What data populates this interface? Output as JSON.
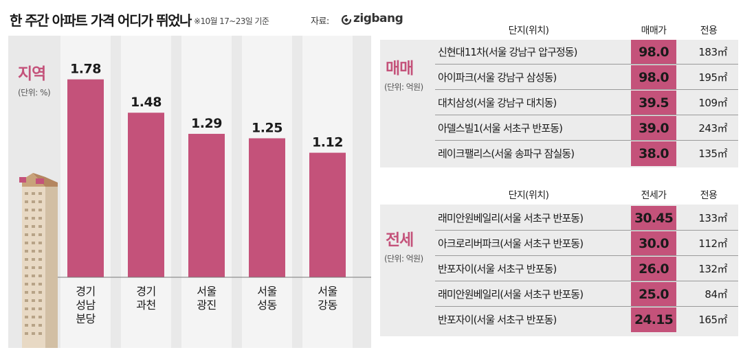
{
  "header": {
    "title": "한 주간 아파트 가격 어디가 뛰었나",
    "subtitle": "※10월 17~23일 기준",
    "source_label": "자료:",
    "brand": "zigbang",
    "brand_icon": "zigbang-logo-icon"
  },
  "chart_data": {
    "type": "bar",
    "title": "지역",
    "unit": "(단위: %)",
    "categories": [
      [
        "경기",
        "성남",
        "분당"
      ],
      [
        "경기",
        "과천"
      ],
      [
        "서울",
        "광진"
      ],
      [
        "서울",
        "성동"
      ],
      [
        "서울",
        "강동"
      ]
    ],
    "values": [
      1.78,
      1.48,
      1.29,
      1.25,
      1.12
    ],
    "data_labels": [
      "1.78",
      "1.48",
      "1.29",
      "1.25",
      "1.12"
    ],
    "ylim": [
      0,
      2.0
    ],
    "grid": false,
    "bar_color": "#c4527a"
  },
  "sale_table": {
    "label": "매매",
    "unit": "(단위: 억원)",
    "headers": {
      "name": "단지(위치)",
      "price": "매매가",
      "area": "전용"
    },
    "rows": [
      {
        "name": "신현대11차(서울 강남구 압구정동)",
        "price": "98.0",
        "area": "183㎡"
      },
      {
        "name": "아이파크(서울 강남구 삼성동)",
        "price": "98.0",
        "area": "195㎡"
      },
      {
        "name": "대치삼성(서울 강남구 대치동)",
        "price": "39.5",
        "area": "109㎡"
      },
      {
        "name": "아델스빌1(서울 서초구 반포동)",
        "price": "39.0",
        "area": "243㎡"
      },
      {
        "name": "레이크팰리스(서울 송파구 잠실동)",
        "price": "38.0",
        "area": "135㎡"
      }
    ]
  },
  "rent_table": {
    "label": "전세",
    "unit": "(단위: 억원)",
    "headers": {
      "name": "단지(위치)",
      "price": "전세가",
      "area": "전용"
    },
    "rows": [
      {
        "name": "래미안원베일리(서울 서초구 반포동)",
        "price": "30.45",
        "area": "133㎡"
      },
      {
        "name": "아크로리버파크(서울 서초구 반포동)",
        "price": "30.0",
        "area": "112㎡"
      },
      {
        "name": "반포자이(서울 서초구 반포동)",
        "price": "26.0",
        "area": "132㎡"
      },
      {
        "name": "래미안원베일리(서울 서초구 반포동)",
        "price": "25.0",
        "area": "84㎡"
      },
      {
        "name": "반포자이(서울 서초구 반포동)",
        "price": "24.15",
        "area": "165㎡"
      }
    ]
  },
  "colors": {
    "accent": "#c4527a",
    "panel_bg": "#e9e9e9"
  }
}
